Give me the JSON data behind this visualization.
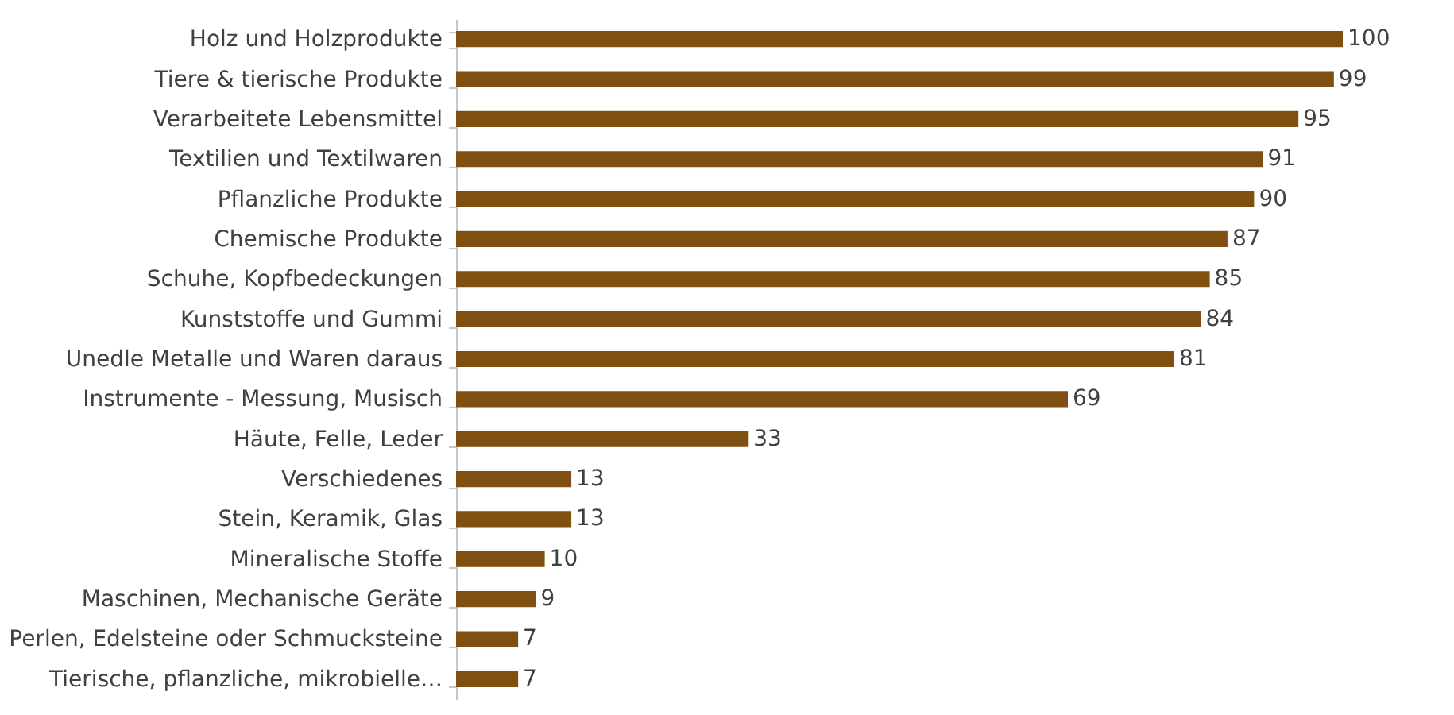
{
  "chart_data": {
    "type": "bar",
    "orientation": "horizontal",
    "data_labels": true,
    "tick_labels": "y",
    "color": "#7f5010",
    "categories": [
      "Holz und Holzprodukte",
      "Tiere & tierische Produkte",
      "Verarbeitete Lebensmittel",
      "Textilien und Textilwaren",
      "Pflanzliche Produkte",
      "Chemische Produkte",
      "Schuhe, Kopfbedeckungen",
      "Kunststoffe und Gummi",
      "Unedle Metalle und Waren daraus",
      "Instrumente - Messung, Musisch",
      "Häute, Felle, Leder",
      "Verschiedenes",
      "Stein, Keramik, Glas",
      "Mineralische Stoffe",
      "Maschinen, Mechanische Geräte",
      "Perlen, Edelsteine oder Schmucksteine",
      "Tierische, pflanzliche, mikrobielle…"
    ],
    "values": [
      100,
      99,
      95,
      91,
      90,
      87,
      85,
      84,
      81,
      69,
      33,
      13,
      13,
      10,
      9,
      7,
      7
    ]
  }
}
